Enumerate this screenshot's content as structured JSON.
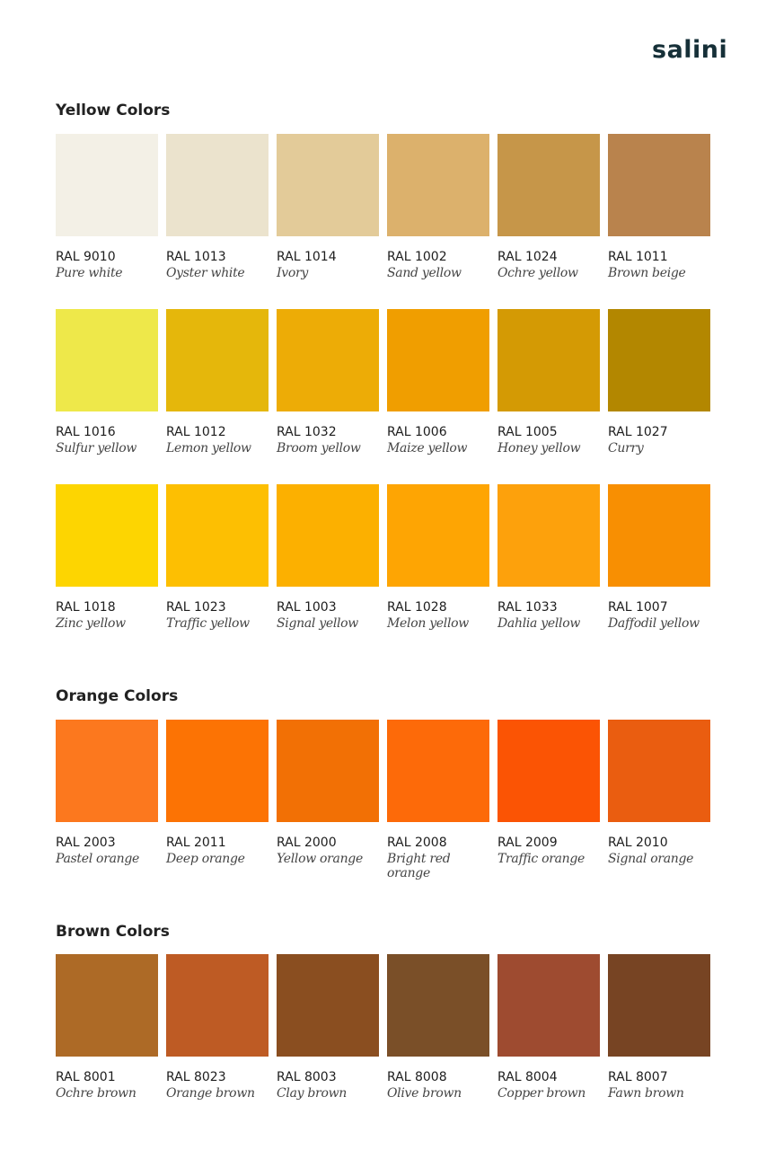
{
  "logo": "salini",
  "sections": [
    {
      "title": "Yellow Colors",
      "rows": [
        [
          {
            "code": "RAL 9010",
            "name": "Pure white",
            "color": "#f3f0e6"
          },
          {
            "code": "RAL 1013",
            "name": "Oyster white",
            "color": "#ebe3cd"
          },
          {
            "code": "RAL 1014",
            "name": "Ivory",
            "color": "#e3cb99"
          },
          {
            "code": "RAL 1002",
            "name": "Sand yellow",
            "color": "#dcb16c"
          },
          {
            "code": "RAL 1024",
            "name": "Ochre yellow",
            "color": "#c69649"
          },
          {
            "code": "RAL 1011",
            "name": "Brown beige",
            "color": "#b9834d"
          }
        ],
        [
          {
            "code": "RAL 1016",
            "name": "Sulfur yellow",
            "color": "#eee84a"
          },
          {
            "code": "RAL 1012",
            "name": "Lemon yellow",
            "color": "#e5b70b"
          },
          {
            "code": "RAL 1032",
            "name": "Broom yellow",
            "color": "#edac06"
          },
          {
            "code": "RAL 1006",
            "name": "Maize yellow",
            "color": "#f09e00"
          },
          {
            "code": "RAL 1005",
            "name": "Honey yellow",
            "color": "#d49a04"
          },
          {
            "code": "RAL 1027",
            "name": "Curry",
            "color": "#b38700"
          }
        ],
        [
          {
            "code": "RAL 1018",
            "name": "Zinc yellow",
            "color": "#fdd501"
          },
          {
            "code": "RAL 1023",
            "name": "Traffic yellow",
            "color": "#fdbf02"
          },
          {
            "code": "RAL 1003",
            "name": "Signal yellow",
            "color": "#fcb000"
          },
          {
            "code": "RAL 1028",
            "name": "Melon yellow",
            "color": "#fea503"
          },
          {
            "code": "RAL 1033",
            "name": "Dahlia yellow",
            "color": "#fda10c"
          },
          {
            "code": "RAL 1007",
            "name": "Daffodil yellow",
            "color": "#f88f02"
          }
        ]
      ]
    },
    {
      "title": "Orange Colors",
      "rows": [
        [
          {
            "code": "RAL 2003",
            "name": "Pastel orange",
            "color": "#fc781e"
          },
          {
            "code": "RAL 2011",
            "name": "Deep orange",
            "color": "#fc7304"
          },
          {
            "code": "RAL 2000",
            "name": "Yellow orange",
            "color": "#f27005"
          },
          {
            "code": "RAL 2008",
            "name": "Bright red orange",
            "color": "#fd6a09"
          },
          {
            "code": "RAL 2009",
            "name": "Traffic orange",
            "color": "#fb5404"
          },
          {
            "code": "RAL 2010",
            "name": "Signal orange",
            "color": "#ea5d10"
          }
        ]
      ]
    },
    {
      "title": "Brown Colors",
      "rows": [
        [
          {
            "code": "RAL 8001",
            "name": "Ochre brown",
            "color": "#ad6a26"
          },
          {
            "code": "RAL 8023",
            "name": "Orange brown",
            "color": "#be5b24"
          },
          {
            "code": "RAL 8003",
            "name": "Clay brown",
            "color": "#8a4e20"
          },
          {
            "code": "RAL 8008",
            "name": "Olive brown",
            "color": "#7a4f28"
          },
          {
            "code": "RAL 8004",
            "name": "Copper brown",
            "color": "#9e4b30"
          },
          {
            "code": "RAL 8007",
            "name": "Fawn brown",
            "color": "#774423"
          }
        ]
      ]
    }
  ]
}
